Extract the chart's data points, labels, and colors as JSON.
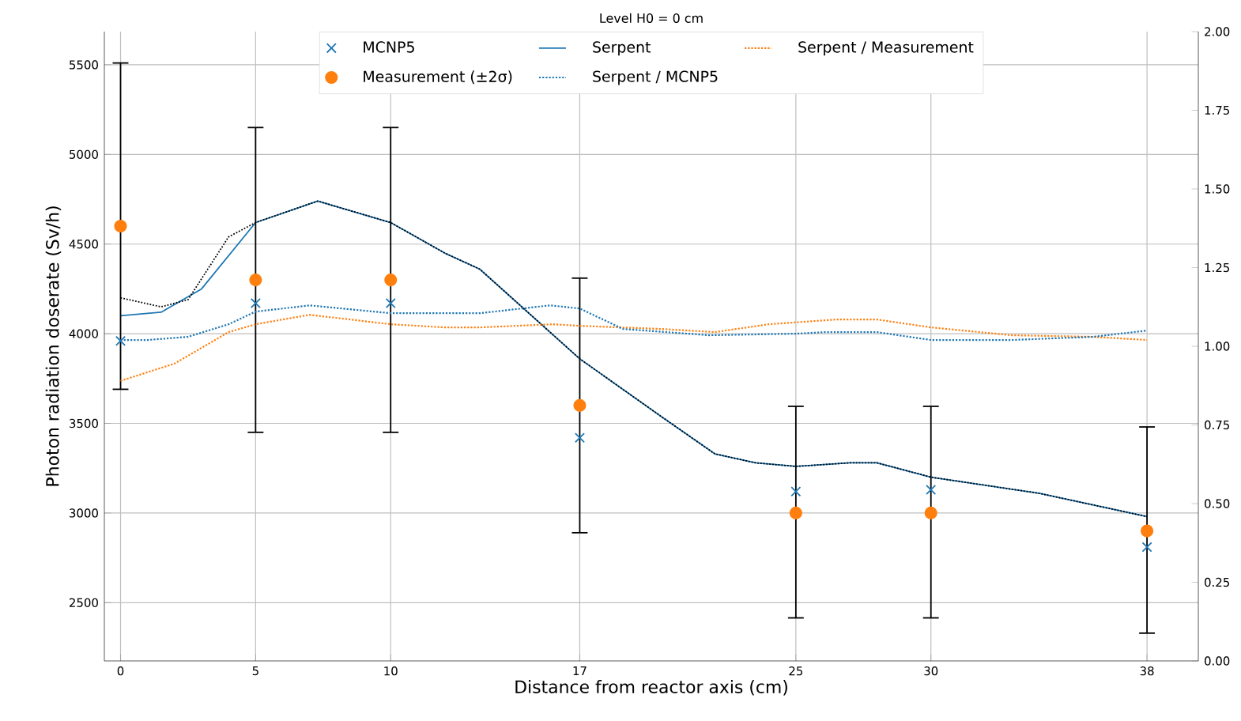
{
  "chart_data": {
    "type": "line",
    "title": "Level H0 = 0 cm",
    "xlabel": "Distance from reactor axis (cm)",
    "ylabel": "Photon radiation doserate (Sv/h)",
    "xlim": [
      -0.6,
      39.9
    ],
    "xticks": [
      0,
      5,
      10,
      17,
      25,
      30,
      38
    ],
    "ylim": [
      2175,
      5685
    ],
    "yticks": [
      2500,
      3000,
      3500,
      4000,
      4500,
      5000,
      5500
    ],
    "y2lim": [
      0,
      2
    ],
    "y2ticks": [
      {
        "value": 0,
        "label": "0.00"
      },
      {
        "value": 0.25,
        "label": "0.25"
      },
      {
        "value": 0.5,
        "label": "0.50"
      },
      {
        "value": 0.75,
        "label": "0.75"
      },
      {
        "value": 1,
        "label": "1.00"
      },
      {
        "value": 1.25,
        "label": "1.25"
      },
      {
        "value": 1.5,
        "label": "1.50"
      },
      {
        "value": 1.75,
        "label": "1.75"
      },
      {
        "value": 2,
        "label": "2.00"
      }
    ],
    "grid": true,
    "legend": "top",
    "series": [
      {
        "name": "MCNP5",
        "type": "scatter",
        "marker": "cross",
        "color": "#1f77b4",
        "x": [
          0,
          5,
          10,
          17,
          25,
          30,
          38
        ],
        "values": [
          3960,
          4170,
          4170,
          3420,
          3120,
          3130,
          2810
        ]
      },
      {
        "name": "Serpent",
        "marker": "none",
        "line_style": "solid",
        "color": "#1f77b4",
        "x": [
          0,
          1.5,
          3,
          5,
          7.3,
          10,
          12,
          13.3,
          17,
          20,
          22,
          23.5,
          25,
          27,
          28,
          30,
          34,
          38
        ],
        "values": [
          4100,
          4120,
          4250,
          4620,
          4740,
          4620,
          4450,
          4360,
          3860,
          3540,
          3330,
          3280,
          3260,
          3280,
          3280,
          3200,
          3110,
          2980
        ]
      },
      {
        "name": "Serpent / Measurement",
        "type": "line",
        "axis": "y2",
        "marker": "none",
        "line_style": "dotted",
        "color": "#ff7f0e",
        "x": [
          0,
          2,
          4,
          5,
          7,
          10,
          12,
          13.3,
          16,
          17,
          20,
          22,
          24,
          26.5,
          28,
          30,
          33,
          36,
          38
        ],
        "values": [
          0.89,
          0.945,
          1.045,
          1.07,
          1.1,
          1.07,
          1.06,
          1.06,
          1.07,
          1.065,
          1.055,
          1.045,
          1.07,
          1.085,
          1.085,
          1.06,
          1.035,
          1.03,
          1.02
        ]
      },
      {
        "name": "Measurement (±2σ)",
        "type": "scatter",
        "marker": "circle",
        "color": "#ff7f0e",
        "x": [
          0,
          5,
          10,
          17,
          25,
          30,
          38
        ],
        "values": [
          4600,
          4300,
          4300,
          3600,
          3000,
          3000,
          2900
        ],
        "errors": [
          [
            3690,
            5510
          ],
          [
            3450,
            5150
          ],
          [
            3450,
            5150
          ],
          [
            2890,
            4310
          ],
          [
            2415,
            3595
          ],
          [
            2415,
            3595
          ],
          [
            2330,
            3480
          ]
        ]
      },
      {
        "name": "Serpent / MCNP5",
        "type": "line",
        "axis": "y2",
        "marker": "none",
        "line_style": "dotted",
        "color": "#1f77b4",
        "x": [
          0,
          1,
          2.5,
          4,
          5,
          7,
          10,
          13.3,
          15.9,
          17,
          18.6,
          21.8,
          25,
          26.1,
          28,
          30,
          33,
          36,
          38
        ],
        "values": [
          1.02,
          1.02,
          1.03,
          1.07,
          1.11,
          1.13,
          1.105,
          1.105,
          1.13,
          1.12,
          1.055,
          1.035,
          1.04,
          1.045,
          1.045,
          1.02,
          1.02,
          1.03,
          1.05
        ]
      },
      {
        "type": "line",
        "marker": "none",
        "line_style": "dotted",
        "color": "#000000",
        "x": [
          0,
          1.5,
          2.5,
          4,
          5,
          7.3,
          10,
          12,
          13.3,
          17,
          20,
          22,
          23.5,
          25,
          27,
          28,
          30,
          34,
          38
        ],
        "values": [
          4200,
          4150,
          4190,
          4540,
          4620,
          4740,
          4620,
          4450,
          4360,
          3860,
          3540,
          3330,
          3280,
          3260,
          3280,
          3280,
          3200,
          3110,
          2980
        ]
      }
    ]
  }
}
